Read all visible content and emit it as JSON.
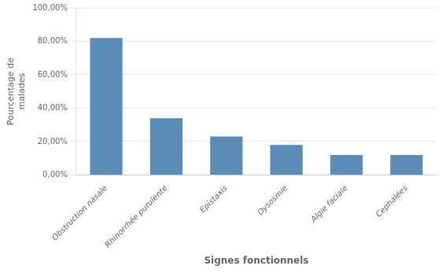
{
  "chart_data": {
    "type": "bar",
    "categories": [
      "Obstruction nasale",
      "Rhinorrhée purulente",
      "Epistaxis",
      "Dysosmie",
      "Algie faciale",
      "Cephalées"
    ],
    "values": [
      82.0,
      34.0,
      23.0,
      18.0,
      12.0,
      12.0
    ],
    "color": "#5b8db8",
    "ylabel": "Pourcentage de\nmalades",
    "xlabel": "Signes fonctionnels",
    "ylim": [
      0,
      100
    ],
    "yticks": [
      {
        "value": 0,
        "label": "0,00%"
      },
      {
        "value": 20,
        "label": "20,00%"
      },
      {
        "value": 40,
        "label": "40,00%"
      },
      {
        "value": 60,
        "label": "60,00%"
      },
      {
        "value": 80,
        "label": "80,00%"
      },
      {
        "value": 100,
        "label": "100,00%"
      }
    ],
    "grid": true
  }
}
